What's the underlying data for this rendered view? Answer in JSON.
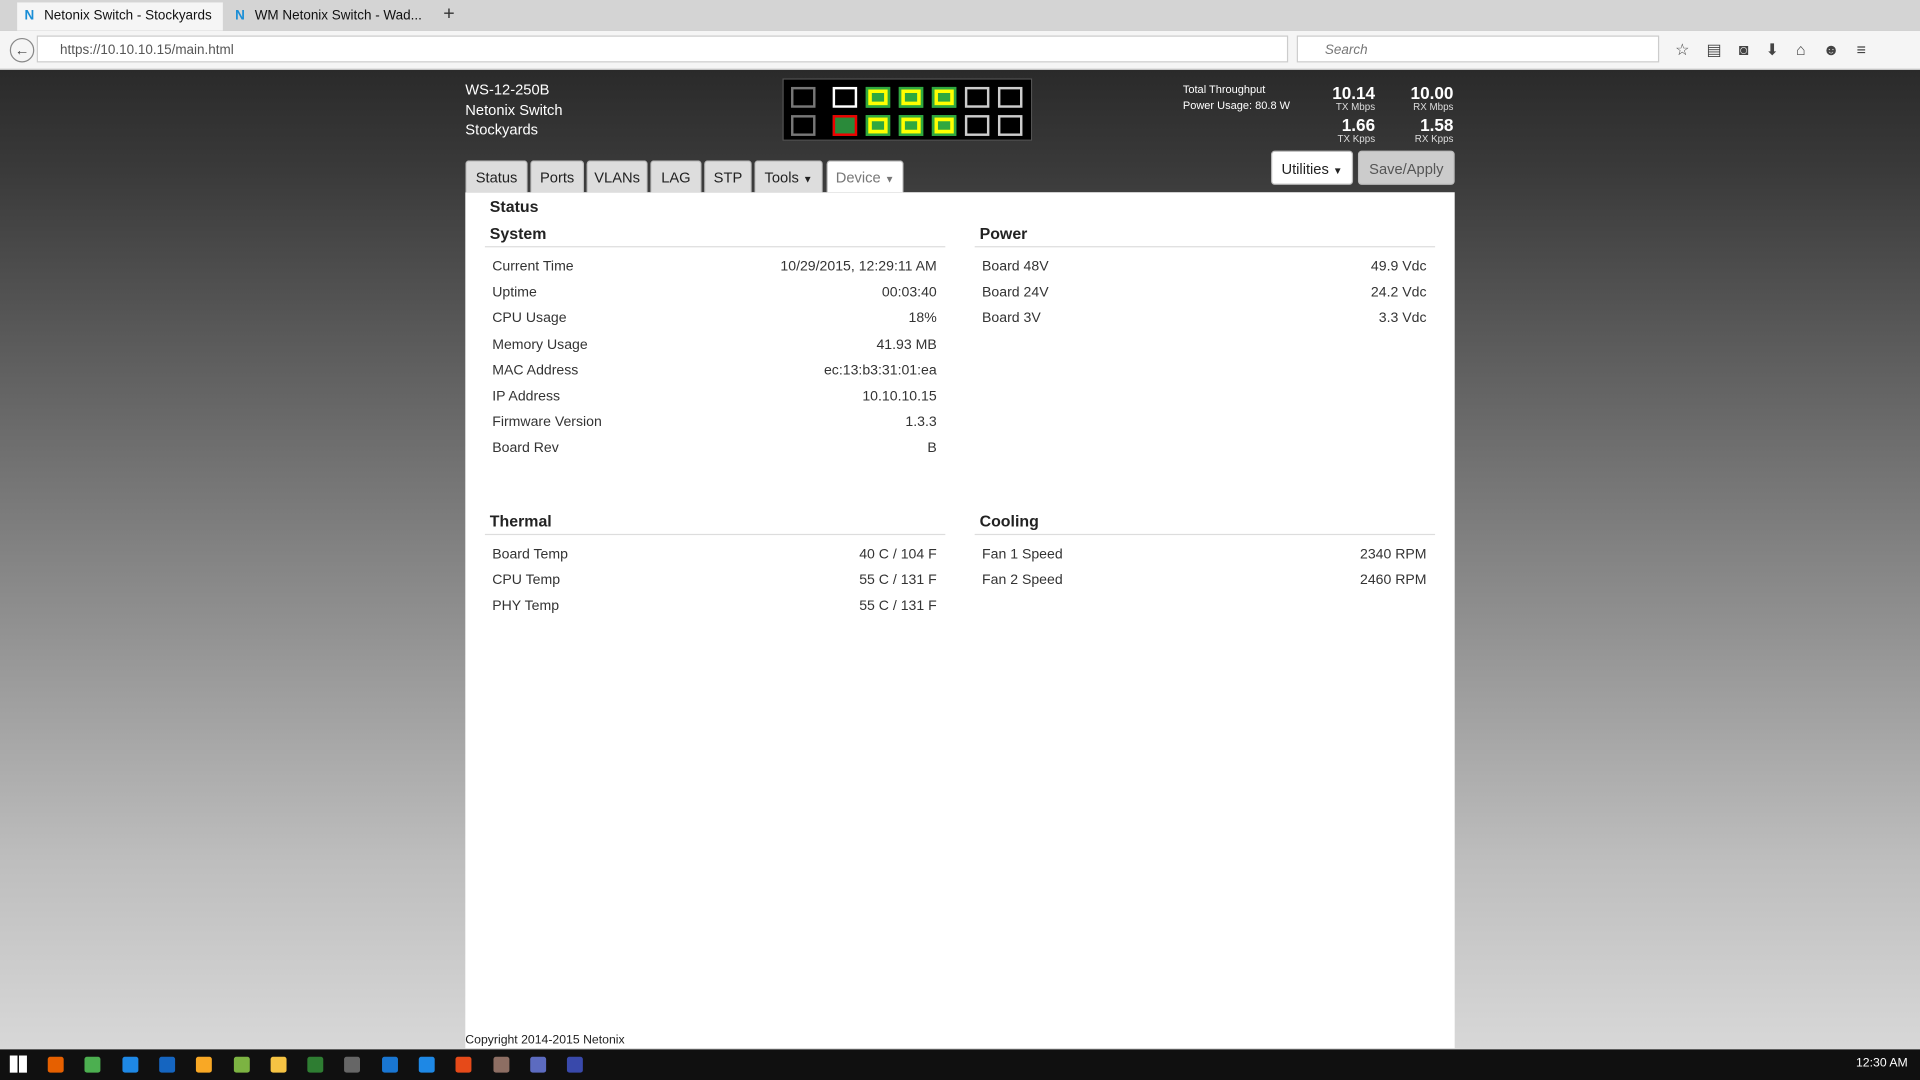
{
  "browser": {
    "tabs": [
      "Netonix Switch - Stockyards",
      "WM Netonix Switch - Wad..."
    ],
    "url": "https://10.10.10.15/main.html",
    "search": "Search"
  },
  "header": {
    "device": [
      "WS-12-250B",
      "Netonix Switch",
      "Stockyards"
    ],
    "throughput_title": "Total Throughput",
    "power": "Power Usage: 80.8 W",
    "stats": [
      {
        "value": "10.14",
        "label": "TX Mbps"
      },
      {
        "value": "10.00",
        "label": "RX Mbps"
      },
      {
        "value": "1.66",
        "label": "TX Kpps"
      },
      {
        "value": "1.58",
        "label": "RX Kpps"
      }
    ]
  },
  "nav": {
    "tabs": [
      "Status",
      "Ports",
      "VLANs",
      "LAG",
      "STP",
      "Tools",
      "Device"
    ],
    "buttons": [
      "Utilities",
      "Save/Apply"
    ]
  },
  "page_title": "Status",
  "sections": [
    {
      "title": "System",
      "rows": [
        [
          "Current Time",
          "10/29/2015, 12:29:11 AM"
        ],
        [
          "Uptime",
          "00:03:40"
        ],
        [
          "CPU Usage",
          "18%"
        ],
        [
          "Memory Usage",
          "41.93 MB"
        ],
        [
          "MAC Address",
          "ec:13:b3:31:01:ea"
        ],
        [
          "IP Address",
          "10.10.10.15"
        ],
        [
          "Firmware Version",
          "1.3.3"
        ],
        [
          "Board Rev",
          "B"
        ]
      ]
    },
    {
      "title": "Power",
      "rows": [
        [
          "Board 48V",
          "49.9 Vdc"
        ],
        [
          "Board 24V",
          "24.2 Vdc"
        ],
        [
          "Board 3V",
          "3.3 Vdc"
        ]
      ]
    },
    {
      "title": "Thermal",
      "rows": [
        [
          "Board Temp",
          "40 C / 104 F"
        ],
        [
          "CPU Temp",
          "55 C / 131 F"
        ],
        [
          "PHY Temp",
          "55 C / 131 F"
        ]
      ]
    },
    {
      "title": "Cooling",
      "rows": [
        [
          "Fan 1 Speed",
          "2340 RPM"
        ],
        [
          "Fan 2 Speed",
          "2460 RPM"
        ]
      ]
    }
  ],
  "footer": "Copyright 2014-2015 Netonix",
  "taskbar": {
    "time": "12:30 AM"
  }
}
